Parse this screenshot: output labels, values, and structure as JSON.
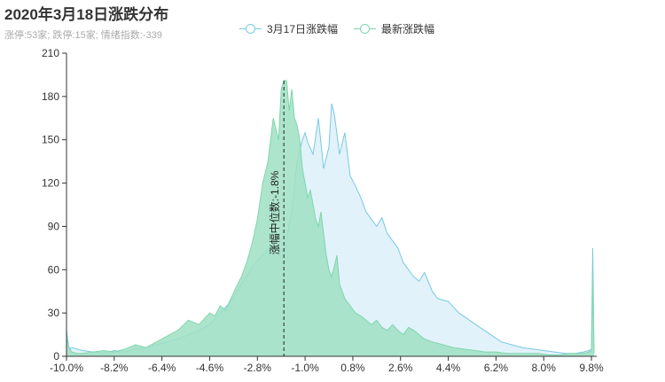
{
  "title": "2020年3月18日涨跌分布",
  "subtitle": "涨停:53家; 跌停:15家; 情绪指数:-339",
  "legend": [
    {
      "name": "3月17日涨跌幅",
      "color": "#79c9e3"
    },
    {
      "name": "最新涨跌幅",
      "color": "#7fd6ad"
    }
  ],
  "chart_data": {
    "type": "area",
    "x_range": [
      -10.0,
      10.0
    ],
    "x_ticks": [
      "-10.0%",
      "-8.2%",
      "-6.4%",
      "-4.6%",
      "-2.8%",
      "-1.0%",
      "0.8%",
      "2.6%",
      "4.4%",
      "6.2%",
      "8.0%",
      "9.8%"
    ],
    "x_tick_values": [
      -10.0,
      -8.2,
      -6.4,
      -4.6,
      -2.8,
      -1.0,
      0.8,
      2.6,
      4.4,
      6.2,
      8.0,
      9.8
    ],
    "ylim": [
      0,
      210
    ],
    "y_ticks": [
      0,
      30,
      60,
      90,
      120,
      150,
      180,
      210
    ],
    "grid": false,
    "median_label": "涨幅中位数:-1.8%",
    "median_value": -1.8,
    "series": [
      {
        "name": "3月17日涨跌幅",
        "color": "#79c9e3",
        "fill": "#dff1fa",
        "x": [
          -10.0,
          -9.9,
          -9.8,
          -9.6,
          -9.4,
          -9.0,
          -8.6,
          -8.2,
          -7.8,
          -7.4,
          -7.0,
          -6.6,
          -6.2,
          -5.8,
          -5.4,
          -5.0,
          -4.6,
          -4.2,
          -3.8,
          -3.4,
          -3.0,
          -2.6,
          -2.2,
          -1.8,
          -1.5,
          -1.3,
          -1.1,
          -1.0,
          -0.9,
          -0.7,
          -0.5,
          -0.3,
          -0.1,
          0.0,
          0.1,
          0.3,
          0.5,
          0.7,
          0.9,
          1.1,
          1.3,
          1.5,
          1.7,
          1.9,
          2.1,
          2.3,
          2.5,
          2.7,
          2.9,
          3.1,
          3.3,
          3.5,
          3.8,
          4.0,
          4.4,
          4.8,
          5.2,
          5.6,
          6.0,
          6.4,
          6.8,
          7.2,
          7.6,
          8.0,
          8.4,
          8.8,
          9.2,
          9.5,
          9.7,
          9.8,
          9.85,
          9.9
        ],
        "values": [
          18,
          5,
          6,
          5,
          4,
          3,
          2,
          4,
          3,
          5,
          6,
          8,
          10,
          12,
          15,
          18,
          22,
          30,
          38,
          50,
          62,
          70,
          78,
          72,
          100,
          135,
          150,
          155,
          148,
          140,
          165,
          130,
          145,
          175,
          168,
          140,
          155,
          125,
          118,
          110,
          100,
          95,
          90,
          96,
          85,
          80,
          75,
          65,
          60,
          55,
          52,
          58,
          45,
          40,
          38,
          30,
          25,
          20,
          15,
          10,
          8,
          6,
          5,
          4,
          3,
          2,
          2,
          3,
          4,
          5,
          75,
          2
        ]
      },
      {
        "name": "最新涨跌幅",
        "color": "#7fd6ad",
        "fill": "#9fe0c3",
        "x": [
          -10.0,
          -9.9,
          -9.8,
          -9.6,
          -9.4,
          -9.0,
          -8.6,
          -8.2,
          -7.8,
          -7.4,
          -7.0,
          -6.6,
          -6.2,
          -5.8,
          -5.4,
          -5.0,
          -4.6,
          -4.4,
          -4.2,
          -4.0,
          -3.8,
          -3.6,
          -3.4,
          -3.2,
          -3.0,
          -2.8,
          -2.6,
          -2.4,
          -2.2,
          -2.0,
          -1.9,
          -1.8,
          -1.7,
          -1.6,
          -1.5,
          -1.4,
          -1.3,
          -1.2,
          -1.1,
          -1.0,
          -0.9,
          -0.8,
          -0.7,
          -0.6,
          -0.5,
          -0.4,
          -0.3,
          -0.2,
          -0.1,
          0.0,
          0.1,
          0.2,
          0.3,
          0.5,
          0.7,
          0.9,
          1.1,
          1.3,
          1.5,
          1.7,
          1.9,
          2.1,
          2.3,
          2.5,
          2.7,
          2.9,
          3.1,
          3.3,
          3.5,
          3.8,
          4.2,
          4.6,
          5.0,
          5.4,
          5.8,
          6.2,
          6.6,
          7.0,
          7.4,
          7.8,
          8.2,
          8.6,
          9.0,
          9.5,
          9.7,
          9.8,
          9.85,
          9.9
        ],
        "values": [
          12,
          6,
          3,
          2,
          2,
          3,
          4,
          3,
          5,
          8,
          6,
          10,
          14,
          18,
          25,
          22,
          30,
          28,
          35,
          32,
          40,
          48,
          55,
          65,
          78,
          95,
          120,
          135,
          165,
          150,
          185,
          191,
          191,
          170,
          185,
          165,
          160,
          150,
          130,
          120,
          110,
          115,
          105,
          95,
          90,
          100,
          85,
          70,
          60,
          55,
          62,
          70,
          50,
          40,
          35,
          30,
          28,
          25,
          22,
          25,
          20,
          18,
          22,
          18,
          15,
          20,
          18,
          15,
          12,
          10,
          8,
          6,
          5,
          4,
          3,
          3,
          2,
          2,
          2,
          2,
          1,
          1,
          2,
          2,
          3,
          4,
          55,
          2
        ]
      }
    ]
  }
}
